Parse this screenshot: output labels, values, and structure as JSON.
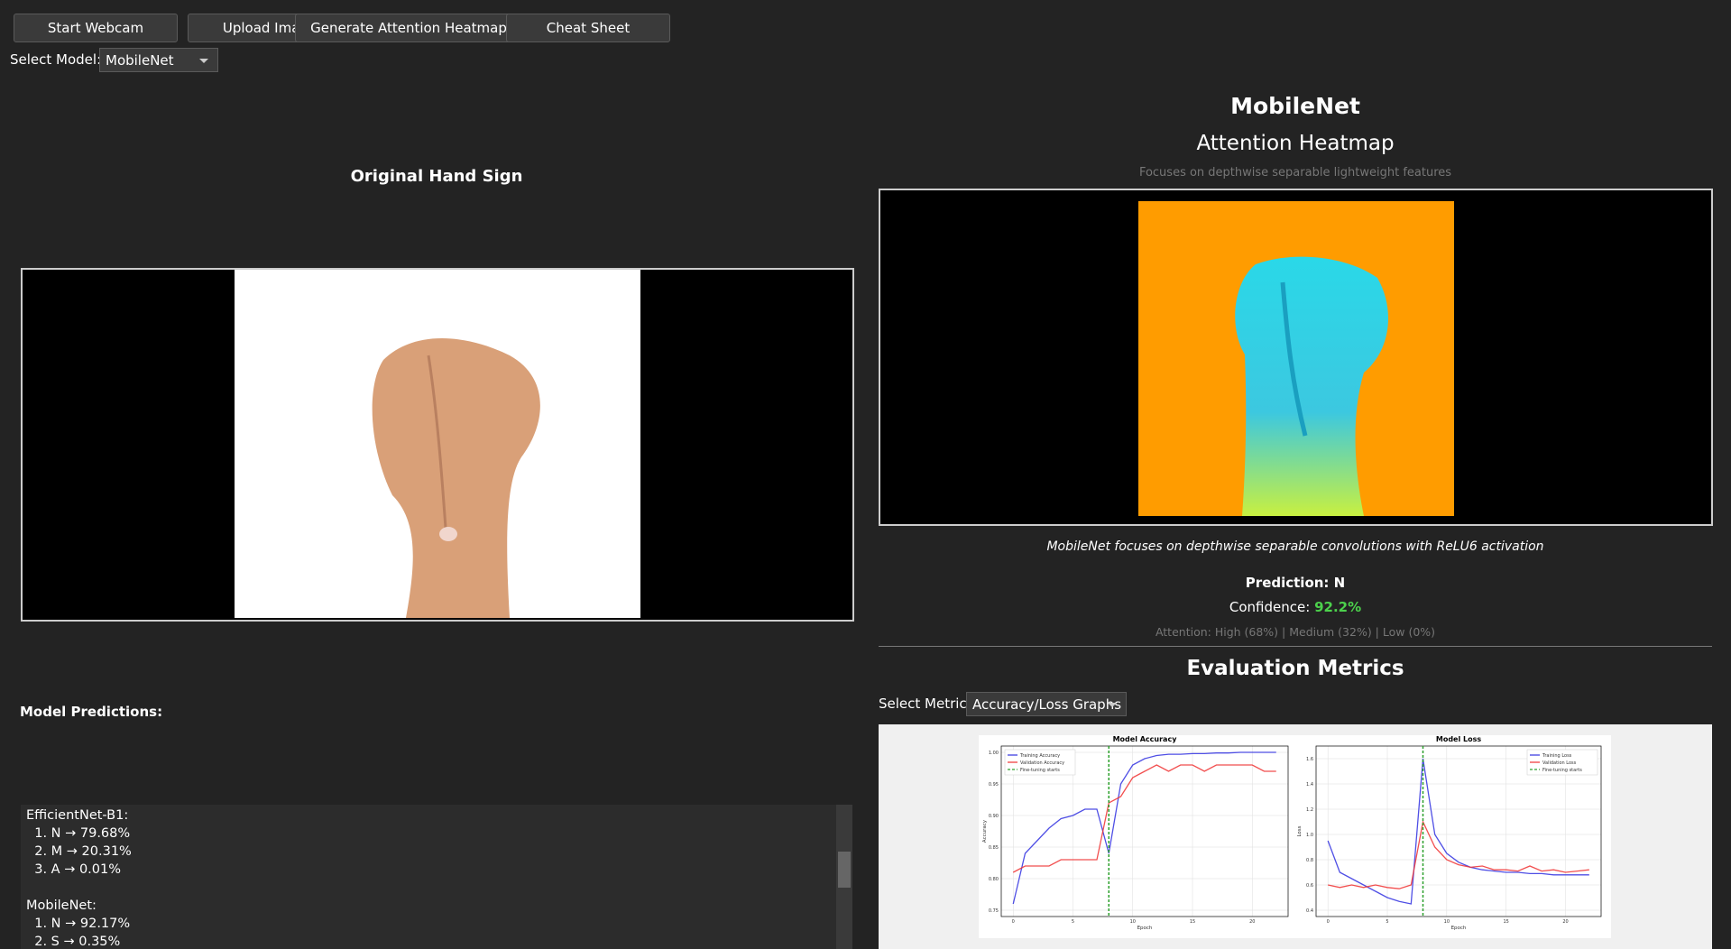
{
  "toolbar": {
    "buttons": [
      "Start Webcam",
      "Upload Image",
      "Generate Attention Heatmap",
      "Cheat Sheet"
    ]
  },
  "model_select": {
    "label": "Select Model:",
    "value": "MobileNet"
  },
  "original": {
    "title": "Original Hand Sign"
  },
  "predictions": {
    "title": "Model Predictions:",
    "lines": [
      "EfficientNet-B1:",
      "  1. N → 79.68%",
      "  2. M → 20.31%",
      "  3. A → 0.01%",
      "",
      "MobileNet:",
      "  1. N → 92.17%",
      "  2. S → 0.35%"
    ]
  },
  "heatmap": {
    "model": "MobileNet",
    "title": "Attention Heatmap",
    "subtitle": "Focuses on depthwise separable lightweight features",
    "caption": "MobileNet focuses on depthwise separable convolutions with ReLU6 activation",
    "prediction": "Prediction: N",
    "confidence_label": "Confidence:",
    "confidence_value": "92.2%",
    "attention": "Attention: High (68%) | Medium (32%) | Low (0%)"
  },
  "metrics": {
    "title": "Evaluation Metrics",
    "select_label": "Select Metric:",
    "select_value": "Accuracy/Loss Graphs"
  },
  "chart_data": [
    {
      "type": "line",
      "title": "Model Accuracy",
      "x_label": "Epoch",
      "y_label": "Accuracy",
      "legend": "upper left",
      "x": [
        0,
        1,
        2,
        3,
        4,
        5,
        6,
        7,
        8,
        9,
        10,
        11,
        12,
        13,
        14,
        15,
        16,
        17,
        18,
        19,
        20,
        21,
        22
      ],
      "series": [
        {
          "name": "Training Accuracy",
          "color": "#3030e0",
          "values": [
            0.76,
            0.84,
            0.86,
            0.88,
            0.895,
            0.9,
            0.91,
            0.91,
            0.84,
            0.95,
            0.98,
            0.99,
            0.995,
            0.997,
            0.997,
            0.998,
            0.998,
            0.999,
            0.999,
            1.0,
            1.0,
            1.0,
            1.0
          ]
        },
        {
          "name": "Validation Accuracy",
          "color": "#f03030",
          "values": [
            0.81,
            0.82,
            0.82,
            0.82,
            0.83,
            0.83,
            0.83,
            0.83,
            0.92,
            0.93,
            0.96,
            0.97,
            0.98,
            0.97,
            0.98,
            0.98,
            0.97,
            0.98,
            0.98,
            0.98,
            0.98,
            0.97,
            0.97
          ]
        }
      ],
      "vline": {
        "name": "Fine-tuning starts",
        "x": 8,
        "color": "#2ca02c"
      },
      "xlim": [
        -1,
        23
      ],
      "ylim": [
        0.74,
        1.01
      ],
      "xticks": [
        0,
        5,
        10,
        15,
        20
      ],
      "yticks": [
        0.75,
        {
          "value": 0.8,
          "label": "0.80"
        },
        0.85,
        {
          "value": 0.9,
          "label": "0.90"
        },
        0.95,
        {
          "value": 1,
          "label": "1.00"
        }
      ],
      "grid": true
    },
    {
      "type": "line",
      "title": "Model Loss",
      "x_label": "Epoch",
      "y_label": "Loss",
      "legend": "upper right",
      "x": [
        0,
        1,
        2,
        3,
        4,
        5,
        6,
        7,
        8,
        9,
        10,
        11,
        12,
        13,
        14,
        15,
        16,
        17,
        18,
        19,
        20,
        21,
        22
      ],
      "series": [
        {
          "name": "Training Loss",
          "color": "#3030e0",
          "values": [
            0.95,
            0.7,
            0.65,
            0.6,
            0.55,
            0.5,
            0.47,
            0.45,
            1.6,
            1.0,
            0.85,
            0.78,
            0.74,
            0.72,
            0.71,
            0.7,
            0.7,
            0.69,
            0.69,
            0.68,
            0.68,
            0.68,
            0.68
          ]
        },
        {
          "name": "Validation Loss",
          "color": "#f03030",
          "values": [
            0.6,
            0.58,
            0.6,
            0.58,
            0.6,
            0.58,
            0.57,
            0.6,
            1.1,
            0.9,
            0.8,
            0.76,
            0.74,
            0.75,
            0.72,
            0.72,
            0.71,
            0.75,
            0.71,
            0.72,
            0.7,
            0.71,
            0.72
          ]
        }
      ],
      "vline": {
        "name": "Fine-tuning starts",
        "x": 8,
        "color": "#2ca02c"
      },
      "xlim": [
        -1,
        23
      ],
      "ylim": [
        0.35,
        1.7
      ],
      "xticks": [
        0,
        5,
        10,
        15,
        20
      ],
      "yticks": [
        0.4,
        0.6,
        0.8,
        {
          "value": 1,
          "label": "1.0"
        },
        1.2,
        1.4,
        1.6
      ],
      "grid": true
    }
  ]
}
